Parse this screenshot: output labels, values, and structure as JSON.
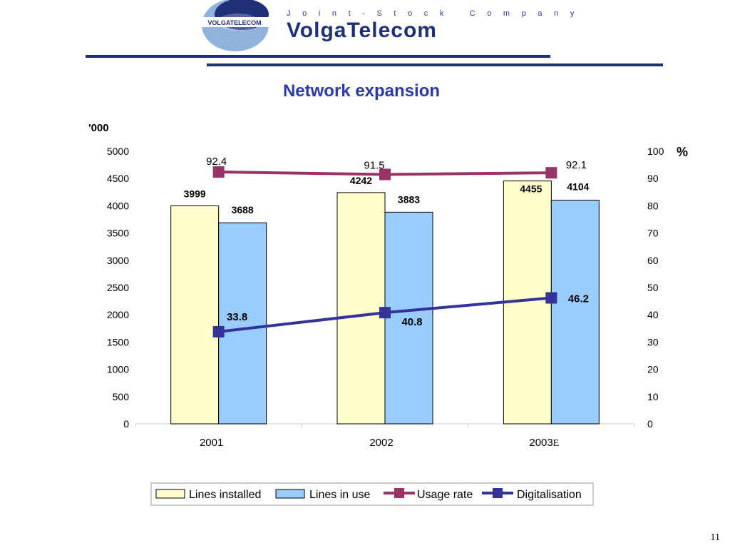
{
  "header": {
    "logo_text": "VOLGATELECOM",
    "company_subtitle": "Joint-Stock Company",
    "brand_name": "VolgaTelecom",
    "colors": {
      "brand_blue": "#1f2f7a",
      "title_blue": "#2b3aa8",
      "logo_light": "#8fb3dc"
    }
  },
  "slide": {
    "title": "Network expansion",
    "page_number": "11"
  },
  "chart_data": {
    "type": "bar",
    "left_axis_unit": "'000",
    "right_axis_unit": "%",
    "categories": [
      "2001",
      "2002",
      "2003"
    ],
    "category_suffix": [
      "",
      "",
      "E"
    ],
    "ylim": [
      0,
      5000
    ],
    "y_ticks": [
      0,
      500,
      1000,
      1500,
      2000,
      2500,
      3000,
      3500,
      4000,
      4500,
      5000
    ],
    "y2lim": [
      0,
      100
    ],
    "y2_ticks": [
      0,
      10,
      20,
      30,
      40,
      50,
      60,
      70,
      80,
      90,
      100
    ],
    "grid": false,
    "legend_position": "bottom",
    "series": [
      {
        "name": "Lines installed",
        "kind": "bar",
        "axis": "left",
        "values": [
          3999,
          4242,
          4455
        ],
        "color": "#ffffcc",
        "labels": [
          "3999",
          "4242",
          "4455"
        ]
      },
      {
        "name": "Lines in use",
        "kind": "bar",
        "axis": "left",
        "values": [
          3688,
          3883,
          4104
        ],
        "color": "#99ccff",
        "labels": [
          "3688",
          "3883",
          "4104"
        ]
      },
      {
        "name": "Usage rate",
        "kind": "line",
        "axis": "right",
        "values": [
          92.4,
          91.5,
          92.1
        ],
        "color": "#993366",
        "labels": [
          "92.4",
          "91.5",
          "92.1"
        ]
      },
      {
        "name": "Digitalisation",
        "kind": "line",
        "axis": "right",
        "values": [
          33.8,
          40.8,
          46.2
        ],
        "color": "#333399",
        "labels": [
          "33.8",
          "40.8",
          "46.2"
        ]
      }
    ]
  }
}
